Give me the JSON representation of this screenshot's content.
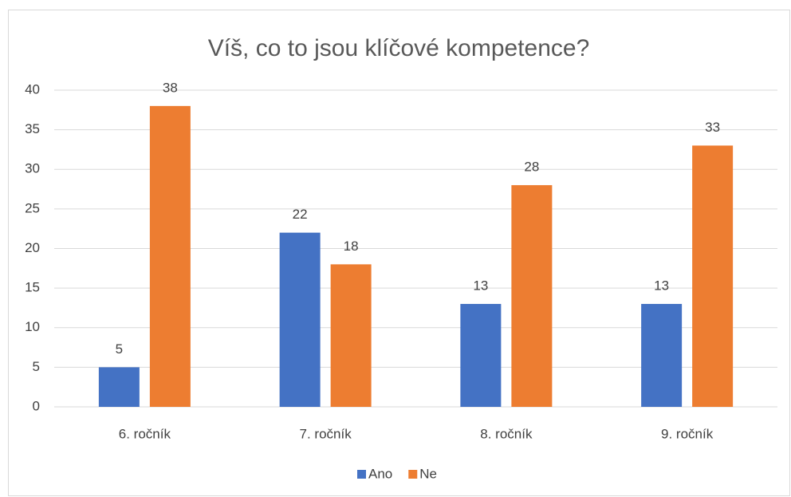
{
  "chart_data": {
    "type": "bar",
    "title": "Víš, co to jsou klíčové kompetence?",
    "categories": [
      "6. ročník",
      "7. ročník",
      "8. ročník",
      "9. ročník"
    ],
    "series": [
      {
        "name": "Ano",
        "color": "#4472c4",
        "values": [
          5,
          22,
          13,
          13
        ]
      },
      {
        "name": "Ne",
        "color": "#ed7d31",
        "values": [
          38,
          18,
          28,
          33
        ]
      }
    ],
    "ylim": [
      0,
      40
    ],
    "yticks": [
      0,
      5,
      10,
      15,
      20,
      25,
      30,
      35,
      40
    ],
    "grid": true,
    "legend": "bottom"
  }
}
